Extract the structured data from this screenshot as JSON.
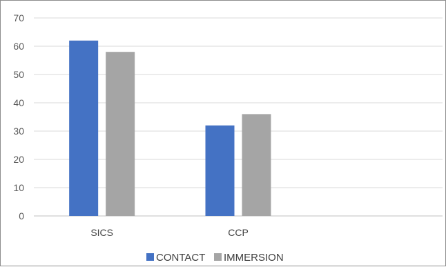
{
  "chart_data": {
    "type": "bar",
    "title": "",
    "xlabel": "",
    "ylabel": "",
    "categories": [
      "SICS",
      "CCP",
      ""
    ],
    "series": [
      {
        "name": "CONTACT",
        "color": "#4472c4",
        "values": [
          62,
          32,
          null
        ]
      },
      {
        "name": "IMMERSION",
        "color": "#a5a5a5",
        "values": [
          58,
          36,
          null
        ]
      }
    ],
    "ylim": [
      0,
      70
    ],
    "yticks": [
      0,
      10,
      20,
      30,
      40,
      50,
      60,
      70
    ],
    "grid": true,
    "legend_position": "bottom"
  }
}
